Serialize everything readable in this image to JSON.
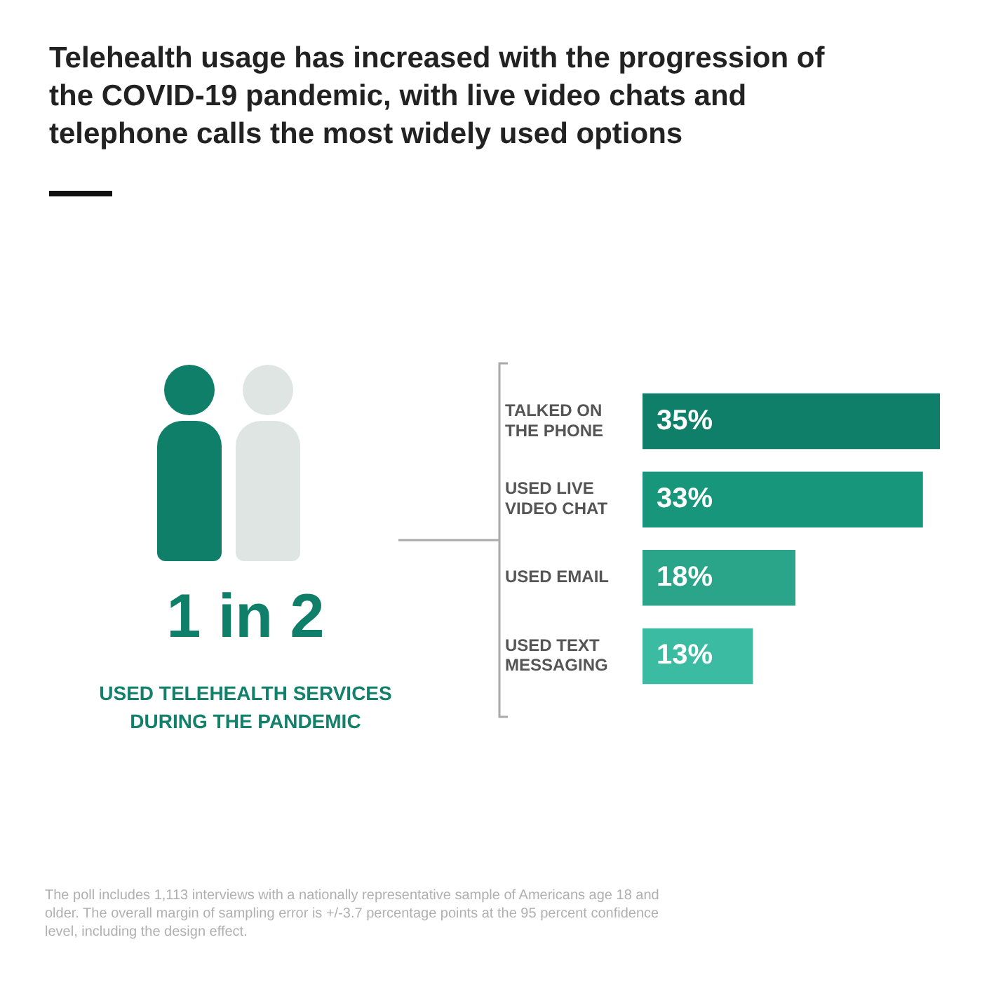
{
  "chart_data": {
    "type": "bar",
    "orientation": "horizontal",
    "title": "Telehealth usage has increased with the progression of the COVID-19 pandemic, with live video chats and telephone calls the most widely used options",
    "categories": [
      "TALKED ON THE PHONE",
      "USED LIVE VIDEO CHAT",
      "USED EMAIL",
      "USED TEXT MESSAGING"
    ],
    "values": [
      35,
      33,
      18,
      13
    ],
    "colors": [
      "#0f7f69",
      "#17967c",
      "#2aa58a",
      "#3bbca2"
    ],
    "data_labels": true,
    "value_labels": [
      "35%",
      "33%",
      "18%",
      "13%"
    ],
    "legend": false,
    "tick_labels": "y",
    "annotations": [
      "1 in 2",
      "USED TELEHEALTH SERVICES DURING THE PANDEMIC",
      "The poll includes 1,113 interviews with a nationally representative sample of Americans age 18 and older. The overall margin of sampling error is +/-3.7 percentage points at the 95 percent confidence level, including the design effect."
    ]
  }
}
